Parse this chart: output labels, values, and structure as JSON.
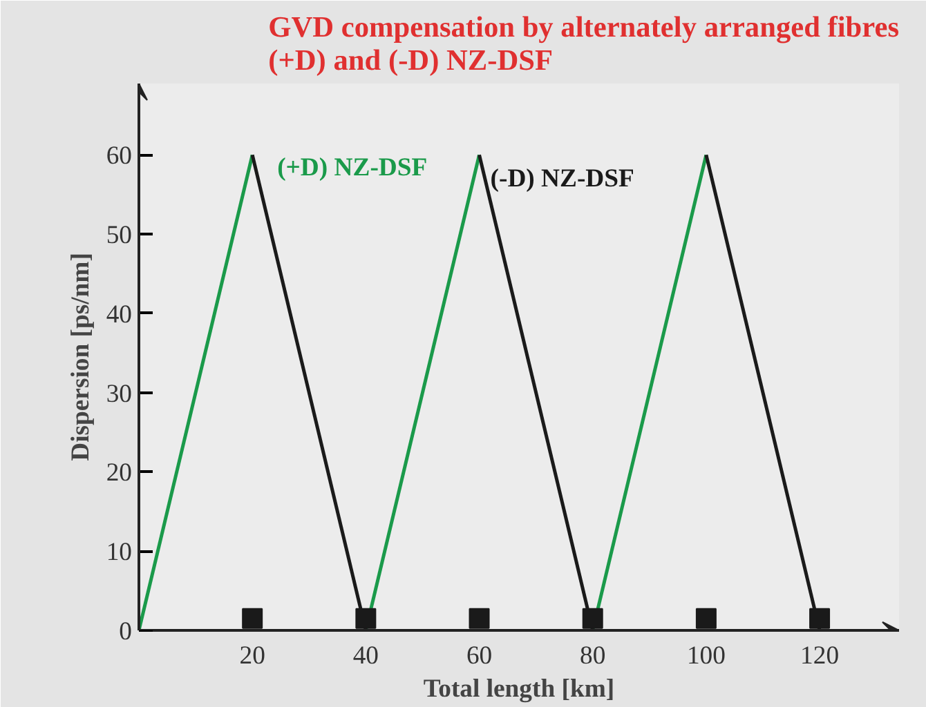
{
  "chart_data": {
    "type": "line",
    "title": "GVD compensation by alternately arranged fibres\n(+D) and (-D) NZ-DSF",
    "xlabel": "Total length [km]",
    "ylabel": "Dispersion [ps/nm]",
    "xlim": [
      0,
      134
    ],
    "ylim": [
      0,
      69
    ],
    "xticks": [
      20,
      40,
      60,
      80,
      100,
      120
    ],
    "yticks": [
      0,
      10,
      20,
      30,
      40,
      50,
      60
    ],
    "grid": false,
    "line_style": "solid",
    "marker": "none",
    "series": [
      {
        "name": "(+D) NZ-DSF",
        "color": "#1a9a4a",
        "x": [
          0,
          20,
          30,
          40,
          60,
          70,
          80,
          100
        ],
        "values": [
          0,
          60,
          null,
          0,
          60,
          null,
          0,
          60
        ]
      },
      {
        "name": "(-D) NZ-DSF",
        "color": "#1a1a1a",
        "x": [
          20,
          40,
          50,
          60,
          80,
          90,
          100,
          120
        ],
        "values": [
          60,
          0,
          null,
          60,
          0,
          null,
          60,
          0
        ]
      },
      {
        "type": "scatter",
        "marker": "square",
        "color": "#1a1a1a",
        "x": [
          20,
          40,
          60,
          80,
          100,
          120
        ],
        "values": [
          1.5,
          1.5,
          1.5,
          1.5,
          1.5,
          1.5
        ]
      }
    ]
  }
}
